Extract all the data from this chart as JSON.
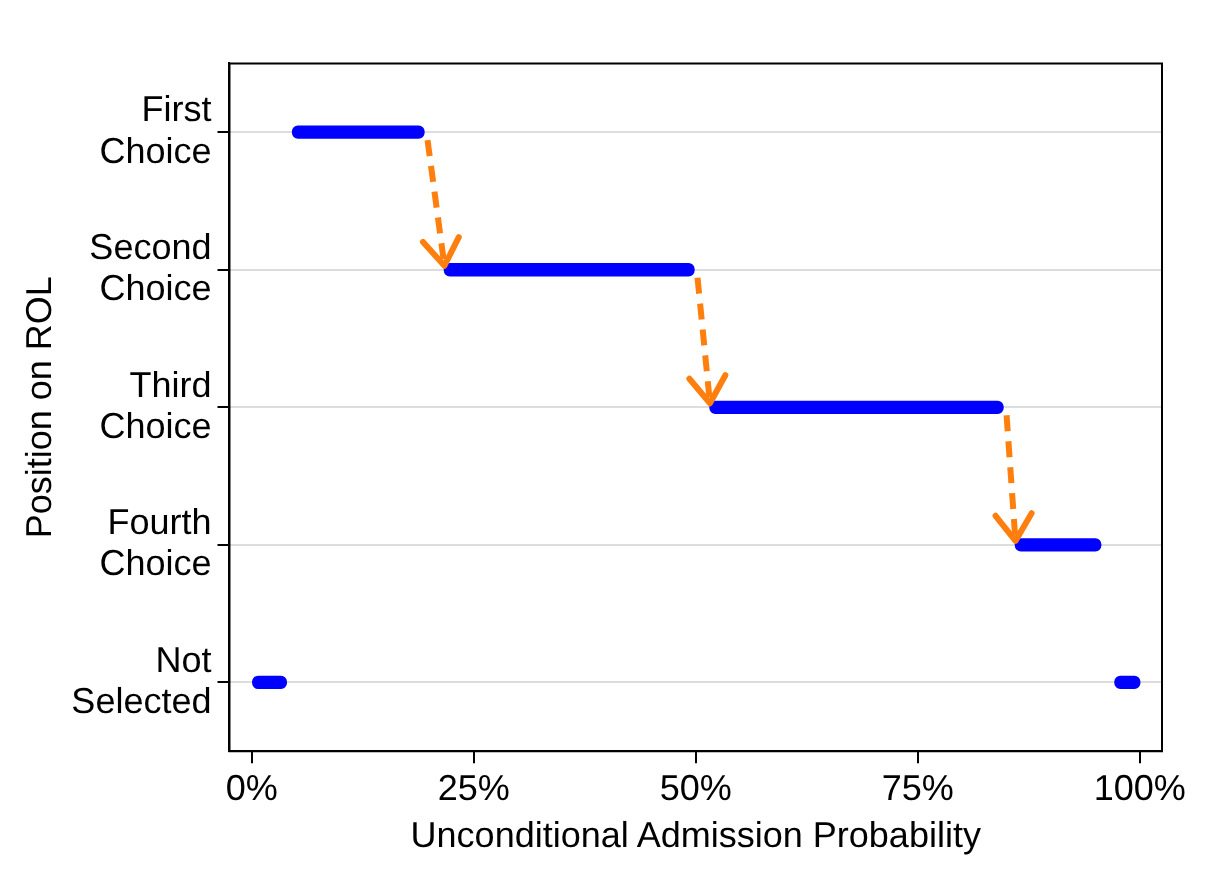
{
  "chart_data": {
    "type": "bar",
    "orientation": "horizontal",
    "xlabel": "Unconditional Admission Probability",
    "ylabel": "Position on ROL",
    "categories": [
      "First\nChoice",
      "Second\nChoice",
      "Third\nChoice",
      "Fourth\nChoice",
      "Not\nSelected"
    ],
    "xlim": [
      -2.5,
      102.5
    ],
    "xticks": [
      {
        "value": 0,
        "label": "0%"
      },
      {
        "value": 25,
        "label": "25%"
      },
      {
        "value": 50,
        "label": "50%"
      },
      {
        "value": 75,
        "label": "75%"
      },
      {
        "value": 100,
        "label": "100%"
      }
    ],
    "grid": "y",
    "legend": false,
    "series": [
      {
        "color": "#0000ff",
        "base": [
          4.6,
          21.7,
          51.6,
          86,
          0
        ],
        "values": [
          14.8,
          28.1,
          33,
          9.6,
          3.9
        ]
      },
      {
        "color": "#0000ff",
        "base": [
          null,
          null,
          null,
          null,
          97.2
        ],
        "values": [
          null,
          null,
          null,
          null,
          2.8
        ]
      }
    ]
  }
}
